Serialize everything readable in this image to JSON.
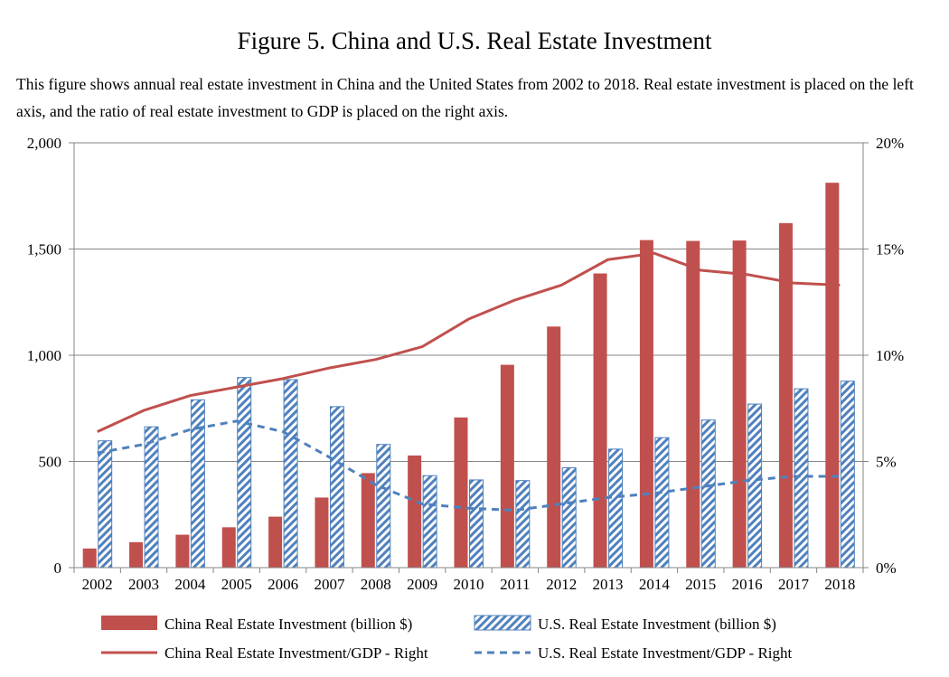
{
  "figure": {
    "title": "Figure 5. China and U.S. Real Estate Investment",
    "caption": "This figure shows annual real estate investment in China and the United States from 2002 to 2018. Real estate investment is placed on the left axis, and the ratio of real estate investment to GDP is placed on the right axis."
  },
  "colors": {
    "china": "#c0504d",
    "us": "#4f81bd",
    "axis": "#868686",
    "grid": "#868686"
  },
  "chart_data": {
    "type": "bar",
    "categories": [
      "2002",
      "2003",
      "2004",
      "2005",
      "2006",
      "2007",
      "2008",
      "2009",
      "2010",
      "2011",
      "2012",
      "2013",
      "2014",
      "2015",
      "2016",
      "2017",
      "2018"
    ],
    "left_axis": {
      "ylim": [
        0,
        2000
      ],
      "ticks": [
        0,
        500,
        1000,
        1500,
        2000
      ],
      "tick_labels": [
        "0",
        "500",
        "1,000",
        "1,500",
        "2,000"
      ]
    },
    "right_axis": {
      "ylim": [
        0,
        20
      ],
      "ticks": [
        0,
        5,
        10,
        15,
        20
      ],
      "tick_labels": [
        "0%",
        "5%",
        "10%",
        "15%",
        "20%"
      ]
    },
    "grid": true,
    "legend_position": "bottom",
    "series": [
      {
        "name": "China Real Estate Investment (billion $)",
        "kind": "bar",
        "axis": "left",
        "color": "#c0504d",
        "values": [
          90,
          120,
          155,
          190,
          240,
          330,
          445,
          528,
          707,
          955,
          1135,
          1385,
          1542,
          1538,
          1540,
          1622,
          1812
        ]
      },
      {
        "name": "U.S. Real Estate Investment (billion $)",
        "kind": "bar",
        "pattern": "diagonal-hatch",
        "axis": "left",
        "color": "#4f81bd",
        "values": [
          597,
          663,
          790,
          895,
          885,
          758,
          580,
          433,
          413,
          410,
          470,
          558,
          612,
          695,
          770,
          842,
          878
        ]
      },
      {
        "name": "China Real Estate Investment/GDP - Right",
        "kind": "line",
        "axis": "right",
        "color": "#c0504d",
        "values": [
          6.4,
          7.4,
          8.1,
          8.5,
          8.9,
          9.4,
          9.8,
          10.4,
          11.7,
          12.6,
          13.3,
          14.5,
          14.8,
          14.0,
          13.8,
          13.4,
          13.3
        ]
      },
      {
        "name": "U.S. Real Estate Investment/GDP - Right",
        "kind": "line",
        "dash": "dashed",
        "axis": "right",
        "color": "#4f81bd",
        "values": [
          5.4,
          5.8,
          6.5,
          6.9,
          6.4,
          5.2,
          3.9,
          3.0,
          2.8,
          2.7,
          3.0,
          3.3,
          3.5,
          3.8,
          4.1,
          4.3,
          4.3
        ]
      }
    ]
  }
}
